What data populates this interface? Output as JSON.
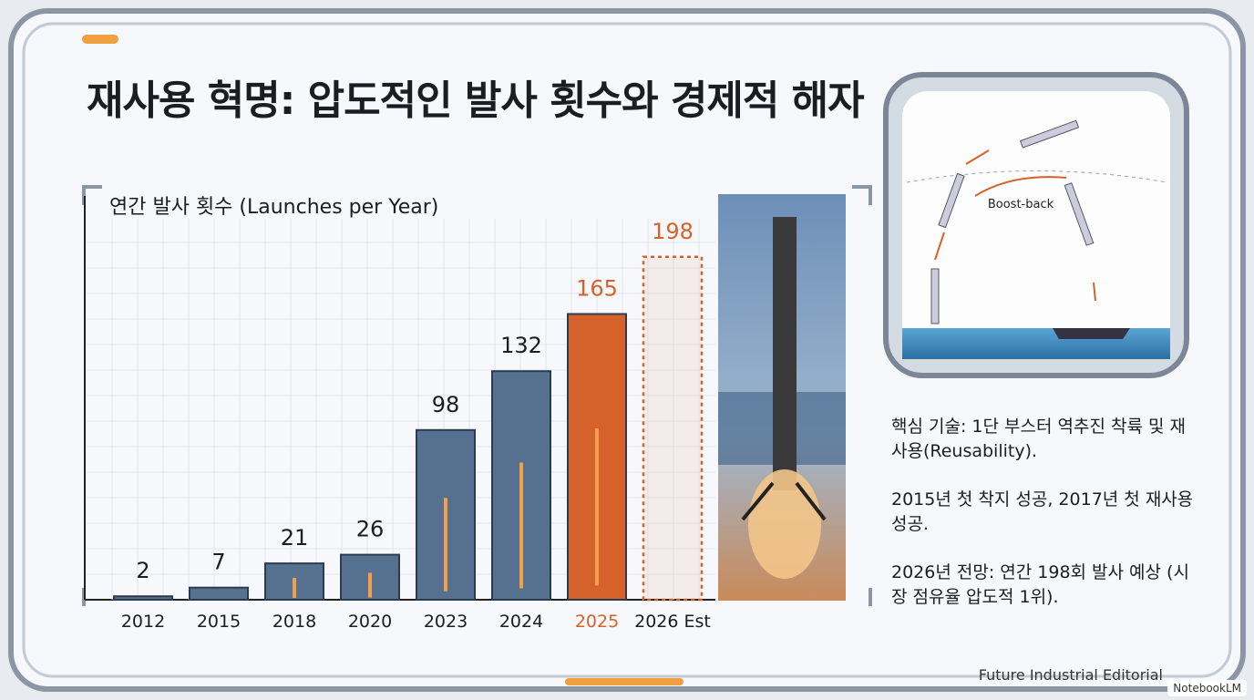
{
  "title": "재사용 혁명: 압도적인 발사 횟수와 경제적 해자",
  "chart_data": {
    "type": "bar",
    "title": "연간 발사 횟수 (Launches per Year)",
    "categories": [
      "2012",
      "2015",
      "2018",
      "2020",
      "2023",
      "2024",
      "2025",
      "2026 Est"
    ],
    "values": [
      2,
      7,
      21,
      26,
      98,
      132,
      165,
      198
    ],
    "colors": [
      "#56718f",
      "#56718f",
      "#56718f",
      "#56718f",
      "#56718f",
      "#56718f",
      "#d4622a",
      "#d4622a"
    ],
    "bar_styles": [
      "solid",
      "solid",
      "solid",
      "solid",
      "solid",
      "solid",
      "solid",
      "dashed"
    ],
    "highlight_index": 6,
    "highlight_color": "#d4622a",
    "grid": true
  },
  "sidebar": {
    "diagram_label": "Boost-back",
    "notes": [
      "핵심 기술: 1단 부스터 역추진 착륙 및 재사용(Reusability).",
      "2015년 첫 착지 성공, 2017년 첫 재사용 성공.",
      "2026년 전망: 연간 198회 발사 예상 (시장 점유율 압도적 1위)."
    ]
  },
  "footer": "Future Industrial Editorial",
  "watermark": "NotebookLM"
}
